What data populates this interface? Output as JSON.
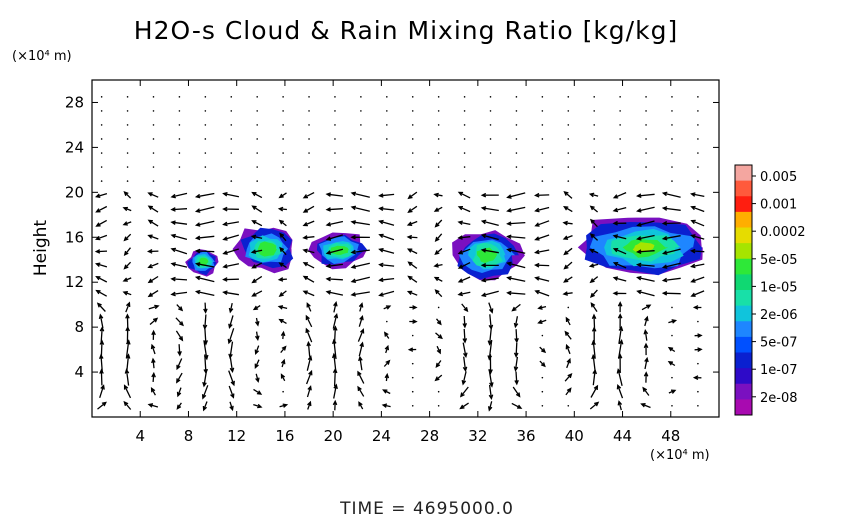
{
  "chart_data": {
    "type": "heatmap",
    "title": "H2O-s Cloud & Rain Mixing Ratio [kg/kg]",
    "xlabel": "",
    "ylabel": "Height",
    "x_unit": "(×10⁴ m)",
    "y_unit": "(×10⁴ m)",
    "xlim": [
      0,
      52
    ],
    "ylim": [
      0,
      30
    ],
    "x_ticks": [
      "4",
      "8",
      "12",
      "16",
      "20",
      "24",
      "28",
      "32",
      "36",
      "40",
      "44",
      "48"
    ],
    "y_ticks": [
      "4",
      "8",
      "12",
      "16",
      "20",
      "24",
      "28"
    ],
    "colorbar": {
      "labels": [
        "0.005",
        "0.001",
        "0.0002",
        "5e-05",
        "1e-05",
        "2e-06",
        "5e-07",
        "1e-07",
        "2e-08"
      ],
      "colors": [
        "#f4a6a0",
        "#ff5a3c",
        "#ff1e10",
        "#ffae00",
        "#e6dc00",
        "#a6e400",
        "#2ee838",
        "#10d872",
        "#18e0a8",
        "#10c4dc",
        "#1e86ff",
        "#0050ff",
        "#0a20d0",
        "#2e0ac8",
        "#7a10c0",
        "#a80ab0"
      ]
    },
    "clouds": [
      {
        "x": [
          7.8,
          10.6
        ],
        "y": [
          12.5,
          15.1
        ],
        "level": "1e-05"
      },
      {
        "x": [
          11.8,
          17.2
        ],
        "y": [
          12.8,
          17.1
        ],
        "level": "5e-05"
      },
      {
        "x": [
          18.0,
          23.0
        ],
        "y": [
          13.2,
          16.5
        ],
        "level": "1e-05"
      },
      {
        "x": [
          29.8,
          35.8
        ],
        "y": [
          12.0,
          16.8
        ],
        "level": "5e-05"
      },
      {
        "x": [
          39.5,
          52.0
        ],
        "y": [
          12.2,
          18.0
        ],
        "level": "5e-05"
      }
    ],
    "wind_vectors": "quiver field"
  },
  "footer": {
    "time_label": "TIME = 4695000.0"
  }
}
